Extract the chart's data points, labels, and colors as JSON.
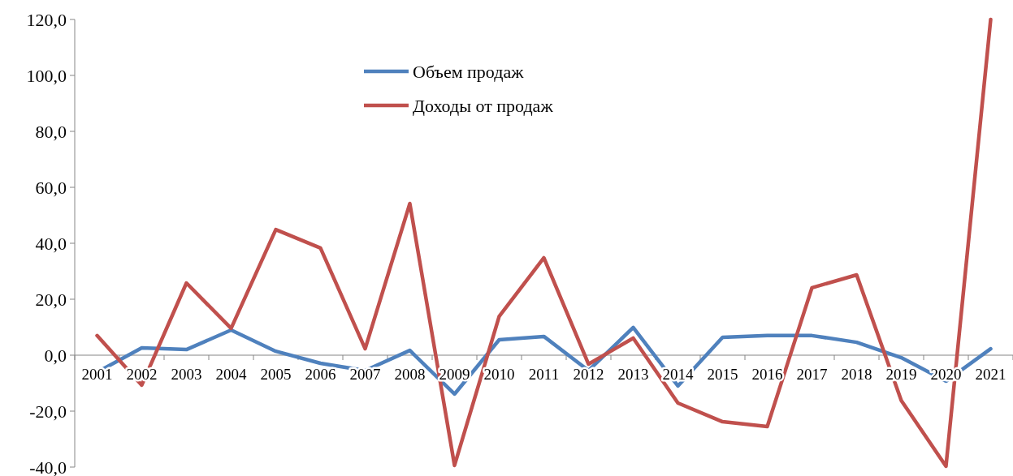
{
  "chart_data": {
    "type": "line",
    "categories": [
      "2001",
      "2002",
      "2003",
      "2004",
      "2005",
      "2006",
      "2007",
      "2008",
      "2009",
      "2010",
      "2011",
      "2012",
      "2013",
      "2014",
      "2015",
      "2016",
      "2017",
      "2018",
      "2019",
      "2020",
      "2021"
    ],
    "series": [
      {
        "name": "Объем продаж",
        "color": "#4f81bd",
        "values": [
          -6.1,
          2.6,
          2.0,
          9.0,
          1.4,
          -2.9,
          -5.5,
          1.7,
          -13.9,
          5.5,
          6.7,
          -5.5,
          9.9,
          -11.0,
          6.4,
          7.0,
          7.0,
          4.6,
          -0.9,
          -9.3,
          2.3
        ]
      },
      {
        "name": "Доходы от продаж",
        "color": "#c0504d",
        "values": [
          7.0,
          -10.7,
          25.8,
          9.6,
          44.9,
          38.3,
          2.3,
          54.2,
          -39.4,
          13.9,
          34.8,
          -3.2,
          6.1,
          -17.1,
          -23.8,
          -25.5,
          24.1,
          28.7,
          -16.2,
          -39.7,
          120
        ]
      }
    ],
    "ylim": [
      -40,
      120
    ],
    "yticks": [
      {
        "value": -40,
        "label": "-40,0"
      },
      {
        "value": -20,
        "label": "-20,0"
      },
      {
        "value": 0,
        "label": "0,0"
      },
      {
        "value": 20,
        "label": "20,0"
      },
      {
        "value": 40,
        "label": "40,0"
      },
      {
        "value": 60,
        "label": "60,0"
      },
      {
        "value": 80,
        "label": "80,0"
      },
      {
        "value": 100,
        "label": "100,0"
      },
      {
        "value": 120,
        "label": "120,0"
      }
    ],
    "grid": false,
    "legend": "top",
    "marker": "none",
    "line_style": "solid"
  }
}
